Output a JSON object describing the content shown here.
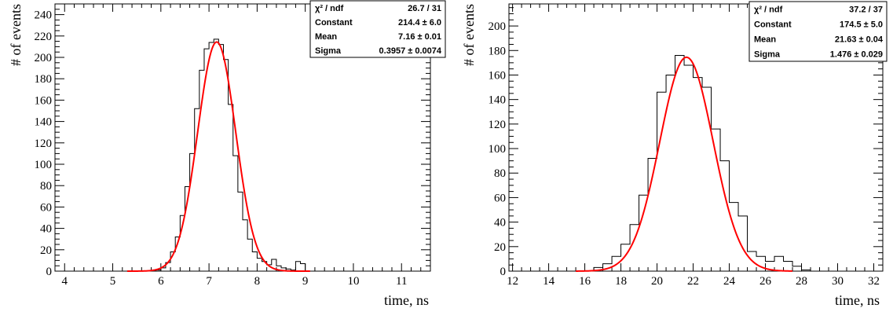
{
  "colors": {
    "histogram": "#000000",
    "fit": "#ff0000",
    "frame": "#000000"
  },
  "chart_data": [
    {
      "type": "bar",
      "xlabel": "time, ns",
      "ylabel": "# of events",
      "xlim": [
        3.8,
        11.6
      ],
      "ylim": [
        0,
        250
      ],
      "xticks": [
        "4",
        "5",
        "6",
        "7",
        "8",
        "9",
        "10",
        "11"
      ],
      "yticks": [
        "0",
        "20",
        "40",
        "60",
        "80",
        "100",
        "120",
        "140",
        "160",
        "180",
        "200",
        "220",
        "240"
      ],
      "bin_width": 0.1,
      "bin_centers": [
        5.95,
        6.05,
        6.15,
        6.25,
        6.35,
        6.45,
        6.55,
        6.65,
        6.75,
        6.85,
        6.95,
        7.05,
        7.15,
        7.25,
        7.35,
        7.45,
        7.55,
        7.65,
        7.75,
        7.85,
        7.95,
        8.05,
        8.15,
        8.25,
        8.35,
        8.45,
        8.55,
        8.65,
        8.75,
        8.85,
        8.95
      ],
      "counts": [
        1,
        3,
        8,
        18,
        32,
        52,
        79,
        110,
        152,
        188,
        208,
        214,
        217,
        212,
        198,
        156,
        108,
        74,
        48,
        30,
        18,
        12,
        9,
        6,
        11,
        5,
        3,
        2,
        1,
        9,
        7
      ],
      "fit": {
        "function": "gaus",
        "constant": 214.4,
        "mean": 7.16,
        "sigma": 0.3957,
        "x_range": [
          5.3,
          9.1
        ]
      },
      "stats": [
        {
          "label": "χ² / ndf",
          "value": "26.7 / 31"
        },
        {
          "label": "Constant",
          "value": "214.4 ± 6.0"
        },
        {
          "label": "Mean",
          "value": "7.16 ± 0.01"
        },
        {
          "label": "Sigma",
          "value": "0.3957 ± 0.0074"
        }
      ]
    },
    {
      "type": "bar",
      "xlabel": "time, ns",
      "ylabel": "# of events",
      "xlim": [
        11.8,
        32.5
      ],
      "ylim": [
        0,
        218
      ],
      "xticks": [
        "12",
        "14",
        "16",
        "18",
        "20",
        "22",
        "24",
        "26",
        "28",
        "30",
        "32"
      ],
      "yticks": [
        "0",
        "20",
        "40",
        "60",
        "80",
        "100",
        "120",
        "140",
        "160",
        "180",
        "200"
      ],
      "bin_width": 0.5,
      "bin_centers": [
        16.75,
        17.25,
        17.75,
        18.25,
        18.75,
        19.25,
        19.75,
        20.25,
        20.75,
        21.25,
        21.75,
        22.25,
        22.75,
        23.25,
        23.75,
        24.25,
        24.75,
        25.25,
        25.75,
        26.25,
        26.75,
        27.25,
        27.75,
        28.25
      ],
      "counts": [
        3,
        6,
        12,
        22,
        38,
        62,
        92,
        146,
        160,
        176,
        168,
        158,
        150,
        116,
        90,
        56,
        45,
        16,
        12,
        8,
        12,
        8,
        4,
        1
      ],
      "fit": {
        "function": "gaus",
        "constant": 174.5,
        "mean": 21.63,
        "sigma": 1.476,
        "x_range": [
          15.5,
          27.5
        ]
      },
      "stats": [
        {
          "label": "χ² / ndf",
          "value": "37.2 / 37"
        },
        {
          "label": "Constant",
          "value": "174.5 ± 5.0"
        },
        {
          "label": "Mean",
          "value": "21.63 ± 0.04"
        },
        {
          "label": "Sigma",
          "value": "1.476 ± 0.029"
        }
      ]
    }
  ]
}
